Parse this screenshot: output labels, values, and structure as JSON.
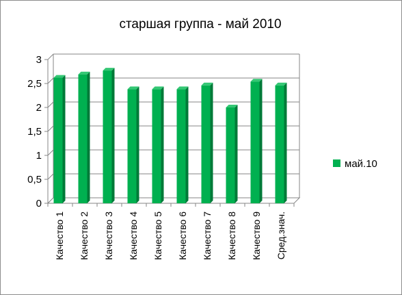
{
  "chart_data": {
    "type": "bar",
    "title": "старшая группа - май 2010",
    "categories": [
      "Качество 1",
      "Качество 2",
      "Качество 3",
      "Качество 4",
      "Качество 5",
      "Качество 6",
      "Качество 7",
      "Качество 8",
      "Качество 9",
      "Сред.знач."
    ],
    "series": [
      {
        "name": "май.10",
        "values": [
          2.62,
          2.69,
          2.77,
          2.38,
          2.38,
          2.38,
          2.46,
          2.0,
          2.54,
          2.46
        ],
        "color": "#00b050"
      }
    ],
    "y_ticks": [
      "0",
      "0,5",
      "1",
      "1,5",
      "2",
      "2,5",
      "3"
    ],
    "ylim": [
      0,
      3
    ],
    "grid": true,
    "legend_position": "right"
  }
}
